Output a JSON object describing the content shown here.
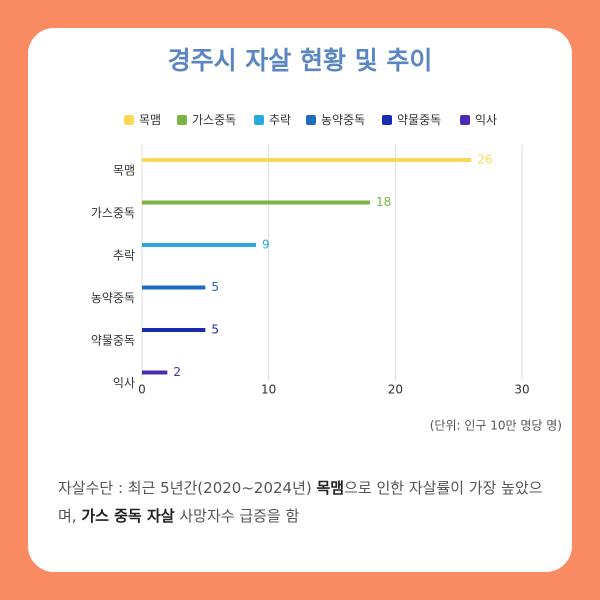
{
  "chart_data": {
    "type": "bar",
    "orientation": "horizontal",
    "title": "경주시 자살 현황 및 추이",
    "categories": [
      "목맴",
      "가스중독",
      "추락",
      "농약중독",
      "약물중독",
      "익사"
    ],
    "values": [
      26,
      18,
      9,
      5,
      5,
      2
    ],
    "colors": [
      "#f9d85a",
      "#7cb342",
      "#29a8e0",
      "#1e6bc0",
      "#1a2bb0",
      "#4b2bb5"
    ],
    "xlim": [
      0,
      30
    ],
    "xticks": [
      0,
      10,
      20,
      30
    ],
    "grid": true,
    "legend": "top",
    "unit_note": "(단위: 인구 10만 명당 명)",
    "footnote": [
      {
        "text": "자살수단 : 최근 5년간(2020~2024년) ",
        "bold": false
      },
      {
        "text": "목맴",
        "bold": true
      },
      {
        "text": "으로 인한 자살률이 가장 높았으며, ",
        "bold": false
      },
      {
        "text": "가스 중독 자살",
        "bold": true
      },
      {
        "text": " 사망자수 급증을 함",
        "bold": false
      }
    ]
  }
}
